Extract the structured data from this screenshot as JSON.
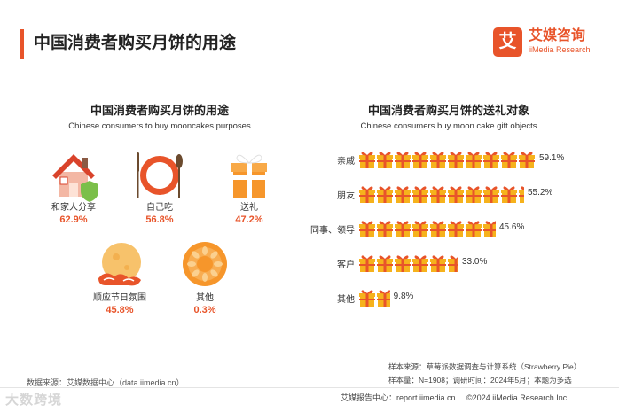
{
  "header": {
    "title": "中国消费者购买月饼的用途",
    "logo_mark": "艾",
    "logo_cn": "艾媒咨询",
    "logo_en": "iiMedia Research"
  },
  "colors": {
    "accent": "#e8542a",
    "gift_red": "#e8542a",
    "gift_gold": "#f6b21c"
  },
  "left_panel": {
    "title": "中国消费者购买月饼的用途",
    "subtitle": "Chinese consumers to buy mooncakes purposes",
    "items": [
      {
        "label": "和家人分享",
        "value": "62.9%",
        "icon": "house-icon"
      },
      {
        "label": "自己吃",
        "value": "56.8%",
        "icon": "plate-icon"
      },
      {
        "label": "送礼",
        "value": "47.2%",
        "icon": "gift-box-icon"
      },
      {
        "label": "顺应节日氛围",
        "value": "45.8%",
        "icon": "moon-icon"
      },
      {
        "label": "其他",
        "value": "0.3%",
        "icon": "mooncake-icon"
      }
    ]
  },
  "chart_data": {
    "type": "bar",
    "title": "中国消费者购买月饼的送礼对象",
    "subtitle": "Chinese consumers buy moon cake gift objects",
    "categories": [
      "亲戚",
      "朋友",
      "同事、领导",
      "客户",
      "其他"
    ],
    "values": [
      59.1,
      55.2,
      45.6,
      33.0,
      9.8
    ],
    "value_labels": [
      "59.1%",
      "55.2%",
      "45.6%",
      "33.0%",
      "9.8%"
    ],
    "unit": "%",
    "xlim": [
      0,
      100
    ],
    "mark": "gift-icon"
  },
  "footer": {
    "source_left": "数据来源：艾媒数据中心（data.iimedia.cn）",
    "note1": "样本来源：草莓派数据调查与计算系统（Strawberry Pie）",
    "note2": "样本量：N=1908；调研时间：2024年5月；本题为多选",
    "report_center": "艾媒报告中心：report.iimedia.cn",
    "copyright": "©2024  iiMedia Research Inc",
    "watermark": "大数跨境"
  }
}
